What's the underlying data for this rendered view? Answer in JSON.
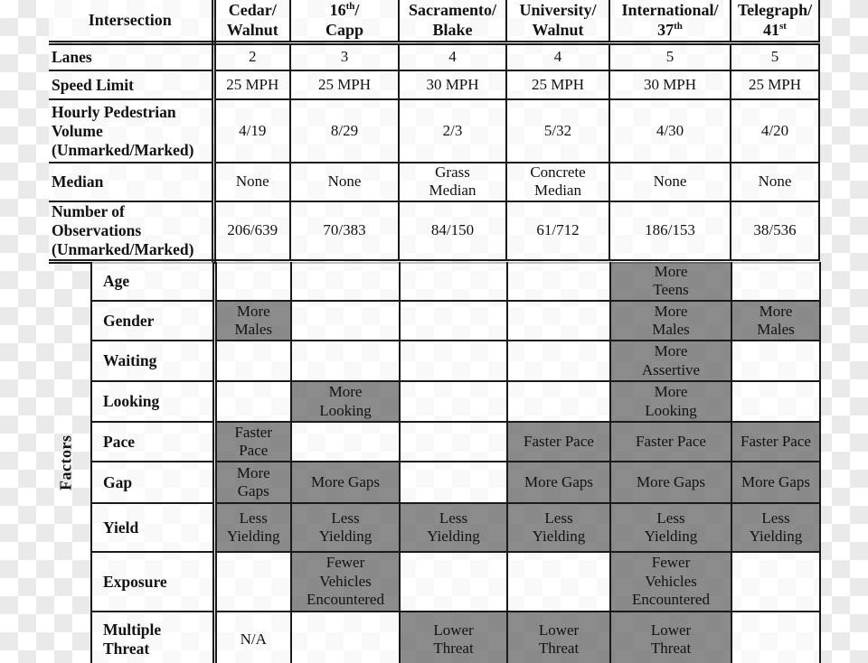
{
  "colors": {
    "grid_line": "#1a1a1a",
    "text": "#121212",
    "highlight_cell_gray": "#8d8d8d",
    "checker_light": "#ffffff",
    "checker_dark": "#eaeaea"
  },
  "table": {
    "corner_header": "Intersection",
    "columns": [
      {
        "id": "cedar-walnut",
        "lines": [
          [
            {
              "text": "Cedar/"
            }
          ],
          [
            {
              "text": "Walnut"
            }
          ]
        ]
      },
      {
        "id": "16th-capp",
        "lines": [
          [
            {
              "text": "16"
            },
            {
              "text": "th",
              "sup": true
            },
            {
              "text": "/"
            }
          ],
          [
            {
              "text": "Capp"
            }
          ]
        ]
      },
      {
        "id": "sacramento-blake",
        "lines": [
          [
            {
              "text": "Sacramento/"
            }
          ],
          [
            {
              "text": "Blake"
            }
          ]
        ]
      },
      {
        "id": "university-walnut",
        "lines": [
          [
            {
              "text": "University/"
            }
          ],
          [
            {
              "text": "Walnut"
            }
          ]
        ]
      },
      {
        "id": "international-37th",
        "lines": [
          [
            {
              "text": "International/"
            }
          ],
          [
            {
              "text": "37"
            },
            {
              "text": "th",
              "sup": true
            }
          ]
        ]
      },
      {
        "id": "telegraph-41st",
        "lines": [
          [
            {
              "text": "Telegraph/"
            }
          ],
          [
            {
              "text": "41"
            },
            {
              "text": "st",
              "sup": true
            }
          ]
        ]
      }
    ],
    "attribute_rows": [
      {
        "label": "Lanes",
        "values": [
          "2",
          "3",
          "4",
          "4",
          "5",
          "5"
        ]
      },
      {
        "label": "Speed Limit",
        "values": [
          "25 MPH",
          "25 MPH",
          "30 MPH",
          "25 MPH",
          "30 MPH",
          "25 MPH"
        ]
      },
      {
        "label": "Hourly Pedestrian\nVolume\n(Unmarked/Marked)",
        "values": [
          "4/19",
          "8/29",
          "2/3",
          "5/32",
          "4/30",
          "4/20"
        ]
      },
      {
        "label": "Median",
        "values": [
          "None",
          "None",
          "Grass\nMedian",
          "Concrete\nMedian",
          "None",
          "None"
        ]
      },
      {
        "label": "Number of\nObservations\n(Unmarked/Marked)",
        "values": [
          "206/639",
          "70/383",
          "84/150",
          "61/712",
          "186/153",
          "38/536"
        ]
      }
    ],
    "factors": {
      "section_label": "Factors",
      "rows": [
        {
          "label": "Age",
          "cells": [
            {
              "text": "",
              "gray": false
            },
            {
              "text": "",
              "gray": false
            },
            {
              "text": "",
              "gray": false
            },
            {
              "text": "",
              "gray": false
            },
            {
              "text": "More\nTeens",
              "gray": true
            },
            {
              "text": "",
              "gray": false
            }
          ]
        },
        {
          "label": "Gender",
          "cells": [
            {
              "text": "More\nMales",
              "gray": true
            },
            {
              "text": "",
              "gray": false
            },
            {
              "text": "",
              "gray": false
            },
            {
              "text": "",
              "gray": false
            },
            {
              "text": "More\nMales",
              "gray": true
            },
            {
              "text": "More\nMales",
              "gray": true
            }
          ]
        },
        {
          "label": "Waiting",
          "cells": [
            {
              "text": "",
              "gray": false
            },
            {
              "text": "",
              "gray": false
            },
            {
              "text": "",
              "gray": false
            },
            {
              "text": "",
              "gray": false
            },
            {
              "text": "More\nAssertive",
              "gray": true
            },
            {
              "text": "",
              "gray": false
            }
          ]
        },
        {
          "label": "Looking",
          "cells": [
            {
              "text": "",
              "gray": false
            },
            {
              "text": "More\nLooking",
              "gray": true
            },
            {
              "text": "",
              "gray": false
            },
            {
              "text": "",
              "gray": false
            },
            {
              "text": "More\nLooking",
              "gray": true
            },
            {
              "text": "",
              "gray": false
            }
          ]
        },
        {
          "label": "Pace",
          "cells": [
            {
              "text": "Faster\nPace",
              "gray": true
            },
            {
              "text": "",
              "gray": false
            },
            {
              "text": "",
              "gray": false
            },
            {
              "text": "Faster Pace",
              "gray": true
            },
            {
              "text": "Faster Pace",
              "gray": true
            },
            {
              "text": "Faster Pace",
              "gray": true
            }
          ]
        },
        {
          "label": "Gap",
          "cells": [
            {
              "text": "More\nGaps",
              "gray": true
            },
            {
              "text": "More Gaps",
              "gray": true
            },
            {
              "text": "",
              "gray": false
            },
            {
              "text": "More Gaps",
              "gray": true
            },
            {
              "text": "More Gaps",
              "gray": true
            },
            {
              "text": "More Gaps",
              "gray": true
            }
          ]
        },
        {
          "label": "Yield",
          "cells": [
            {
              "text": "Less\nYielding",
              "gray": true
            },
            {
              "text": "Less\nYielding",
              "gray": true
            },
            {
              "text": "Less\nYielding",
              "gray": true
            },
            {
              "text": "Less\nYielding",
              "gray": true
            },
            {
              "text": "Less\nYielding",
              "gray": true
            },
            {
              "text": "Less\nYielding",
              "gray": true
            }
          ]
        },
        {
          "label": "Exposure",
          "cells": [
            {
              "text": "",
              "gray": false
            },
            {
              "text": "Fewer\nVehicles\nEncountered",
              "gray": true
            },
            {
              "text": "",
              "gray": false
            },
            {
              "text": "",
              "gray": false
            },
            {
              "text": "Fewer\nVehicles\nEncountered",
              "gray": true
            },
            {
              "text": "",
              "gray": false
            }
          ]
        },
        {
          "label": "Multiple\nThreat",
          "cells": [
            {
              "text": "N/A",
              "gray": false
            },
            {
              "text": "",
              "gray": false
            },
            {
              "text": "Lower\nThreat",
              "gray": true
            },
            {
              "text": "Lower\nThreat",
              "gray": true
            },
            {
              "text": "Lower\nThreat",
              "gray": true
            },
            {
              "text": "",
              "gray": false
            }
          ]
        }
      ]
    }
  }
}
